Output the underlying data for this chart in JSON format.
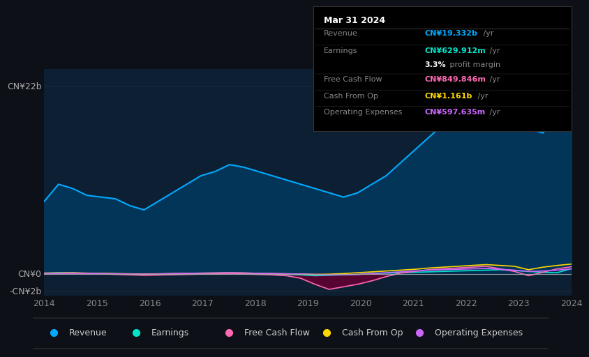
{
  "background_color": "#0d1117",
  "chart_bg_color": "#0d1f33",
  "x_labels": [
    "2014",
    "2015",
    "2016",
    "2017",
    "2018",
    "2019",
    "2020",
    "2021",
    "2022",
    "2023",
    "2024"
  ],
  "legend": [
    {
      "label": "Revenue",
      "color": "#00aaff"
    },
    {
      "label": "Earnings",
      "color": "#00e5cc"
    },
    {
      "label": "Free Cash Flow",
      "color": "#ff69b4"
    },
    {
      "label": "Cash From Op",
      "color": "#ffd700"
    },
    {
      "label": "Operating Expenses",
      "color": "#cc66ff"
    }
  ],
  "tooltip_date": "Mar 31 2024",
  "tooltip_rows": [
    {
      "label": "Revenue",
      "value": "CN¥19.332b",
      "suffix": " /yr",
      "color": "#00aaff"
    },
    {
      "label": "Earnings",
      "value": "CN¥629.912m",
      "suffix": " /yr",
      "color": "#00e5cc"
    },
    {
      "label": "",
      "value": "3.3%",
      "suffix": " profit margin",
      "color": "#ffffff"
    },
    {
      "label": "Free Cash Flow",
      "value": "CN¥849.846m",
      "suffix": " /yr",
      "color": "#ff69b4"
    },
    {
      "label": "Cash From Op",
      "value": "CN¥1.161b",
      "suffix": " /yr",
      "color": "#ffd700"
    },
    {
      "label": "Operating Expenses",
      "value": "CN¥597.635m",
      "suffix": " /yr",
      "color": "#cc66ff"
    }
  ],
  "revenue": [
    8.5,
    10.5,
    10.0,
    9.2,
    9.0,
    8.8,
    8.0,
    7.5,
    8.5,
    9.5,
    10.5,
    11.5,
    12.0,
    12.8,
    12.5,
    12.0,
    11.5,
    11.0,
    10.5,
    10.0,
    9.5,
    9.0,
    9.5,
    10.5,
    11.5,
    13.0,
    14.5,
    16.0,
    17.5,
    19.0,
    20.5,
    21.5,
    22.0,
    20.0,
    17.0,
    16.5,
    18.5,
    19.332
  ],
  "earnings": [
    0.1,
    0.15,
    0.12,
    0.08,
    0.05,
    0.02,
    -0.05,
    -0.1,
    -0.08,
    -0.05,
    -0.02,
    0.02,
    0.05,
    0.08,
    0.1,
    0.05,
    0.0,
    -0.05,
    -0.1,
    -0.2,
    -0.15,
    -0.1,
    -0.05,
    0.05,
    0.1,
    0.15,
    0.2,
    0.25,
    0.3,
    0.35,
    0.4,
    0.45,
    0.5,
    0.4,
    0.3,
    0.2,
    0.15,
    0.63
  ],
  "free_cash_flow": [
    0.0,
    0.05,
    0.08,
    0.05,
    0.02,
    -0.05,
    -0.1,
    -0.15,
    -0.12,
    -0.08,
    -0.05,
    -0.02,
    0.0,
    0.05,
    0.0,
    -0.05,
    -0.1,
    -0.2,
    -0.5,
    -1.2,
    -1.8,
    -1.5,
    -1.2,
    -0.8,
    -0.3,
    0.1,
    0.3,
    0.5,
    0.6,
    0.7,
    0.8,
    0.9,
    0.6,
    0.3,
    -0.2,
    0.2,
    0.6,
    0.85
  ],
  "cash_from_op": [
    0.1,
    0.12,
    0.15,
    0.1,
    0.08,
    0.05,
    0.02,
    0.0,
    0.02,
    0.05,
    0.08,
    0.1,
    0.12,
    0.15,
    0.12,
    0.08,
    0.05,
    0.02,
    0.0,
    -0.05,
    -0.02,
    0.05,
    0.15,
    0.25,
    0.35,
    0.45,
    0.55,
    0.7,
    0.8,
    0.9,
    1.0,
    1.1,
    1.0,
    0.9,
    0.5,
    0.8,
    1.0,
    1.161
  ],
  "operating_expenses": [
    0.05,
    0.08,
    0.1,
    0.08,
    0.05,
    0.02,
    0.0,
    -0.02,
    0.0,
    0.05,
    0.08,
    0.1,
    0.12,
    0.15,
    0.12,
    0.08,
    0.05,
    0.02,
    0.0,
    -0.05,
    -0.1,
    -0.08,
    -0.05,
    0.05,
    0.15,
    0.25,
    0.35,
    0.45,
    0.5,
    0.55,
    0.6,
    0.65,
    0.55,
    0.45,
    0.3,
    0.35,
    0.45,
    0.598
  ],
  "ylim": [
    -2.5,
    24
  ],
  "ylabel_top": "CN¥22b",
  "ylabel_zero": "CN¥0",
  "ylabel_neg": "-CN¥2b",
  "ylabel_top_val": 22,
  "ylabel_zero_val": 0,
  "ylabel_neg_val": -2
}
